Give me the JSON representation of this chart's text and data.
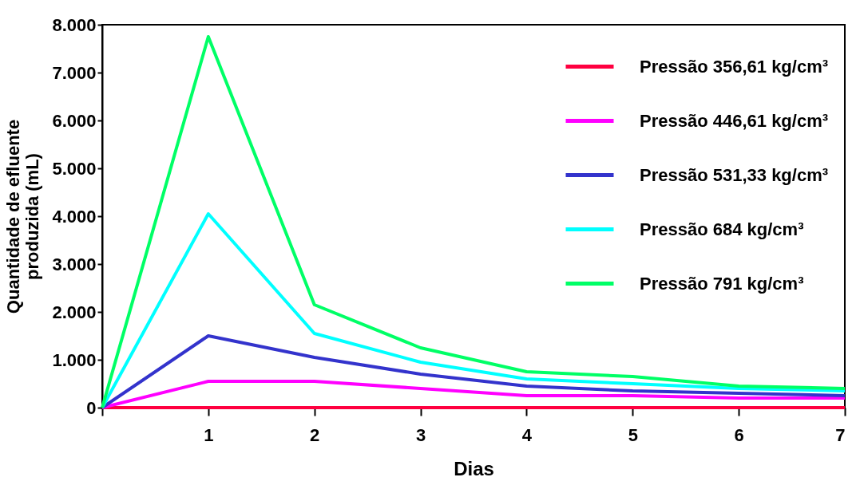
{
  "chart_data": {
    "type": "line",
    "xlabel": "Dias",
    "ylabel": "Quantidade de efluente produzida (mL)",
    "x": [
      0,
      1,
      2,
      3,
      4,
      5,
      6,
      7
    ],
    "xlim": [
      0,
      7
    ],
    "xticks": [
      {
        "value": 0,
        "label": null
      },
      1,
      2,
      3,
      4,
      5,
      6,
      7
    ],
    "ylim": [
      0,
      8000
    ],
    "yticks": [
      0,
      {
        "value": 1000,
        "label": "1.000"
      },
      {
        "value": 2000,
        "label": "2.000"
      },
      {
        "value": 3000,
        "label": "3.000"
      },
      {
        "value": 4000,
        "label": "4.000"
      },
      {
        "value": 5000,
        "label": "5.000"
      },
      {
        "value": 6000,
        "label": "6.000"
      },
      {
        "value": 7000,
        "label": "7.000"
      },
      {
        "value": 8000,
        "label": "8.000"
      }
    ],
    "grid": false,
    "legend": "top right",
    "marker": "none",
    "line_style": "solid",
    "series": [
      {
        "name": "Pressão 356,61 kg/cm³",
        "color": "#ff0040",
        "values": [
          0,
          0,
          0,
          0,
          0,
          0,
          0,
          0
        ]
      },
      {
        "name": "Pressão 446,61 kg/cm³",
        "color": "#ff00ff",
        "values": [
          0,
          550,
          550,
          400,
          250,
          250,
          200,
          200
        ]
      },
      {
        "name": "Pressão 531,33 kg/cm³",
        "color": "#3333cc",
        "values": [
          0,
          1500,
          1050,
          700,
          450,
          350,
          300,
          250
        ]
      },
      {
        "name": "Pressão 684 kg/cm³",
        "color": "#00ffff",
        "values": [
          0,
          4050,
          1550,
          950,
          600,
          500,
          400,
          350
        ]
      },
      {
        "name": "Pressão 791 kg/cm³",
        "color": "#00ff66",
        "values": [
          0,
          7750,
          2150,
          1250,
          750,
          650,
          450,
          400
        ]
      }
    ]
  }
}
